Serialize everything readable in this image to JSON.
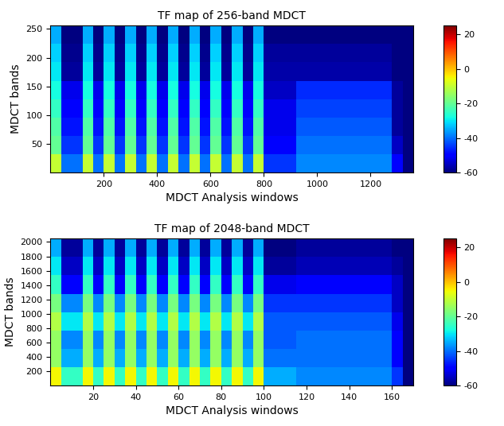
{
  "chart_data": [
    {
      "type": "heatmap",
      "title": "TF map of 256-band MDCT",
      "x_label": "MDCT Analysis windows",
      "y_label": "MDCT bands",
      "xlim": [
        0,
        1360
      ],
      "ylim": [
        0,
        256
      ],
      "xticks": [
        200,
        400,
        600,
        800,
        1000,
        1200
      ],
      "yticks": [
        50,
        100,
        150,
        200,
        250
      ],
      "color_range": [
        -60,
        25
      ],
      "color_ticks": [
        -60,
        -40,
        -20,
        0,
        20
      ],
      "cells": [
        [
          -10,
          -40,
          -40,
          -10,
          -40,
          -10,
          -40,
          -10,
          -40,
          -10,
          -40,
          -10,
          -40,
          -10,
          -40,
          -10,
          -40,
          -10,
          -40,
          -10,
          -45,
          -45,
          -45,
          -38,
          -38,
          -38,
          -38,
          -38,
          -38,
          -38,
          -38,
          -38,
          -50,
          -60
        ],
        [
          -20,
          -45,
          -45,
          -20,
          -45,
          -20,
          -45,
          -20,
          -45,
          -20,
          -45,
          -20,
          -45,
          -20,
          -45,
          -20,
          -45,
          -20,
          -45,
          -20,
          -50,
          -50,
          -50,
          -40,
          -40,
          -40,
          -40,
          -40,
          -40,
          -40,
          -40,
          -40,
          -55,
          -60
        ],
        [
          -22,
          -48,
          -48,
          -22,
          -48,
          -22,
          -48,
          -22,
          -48,
          -22,
          -48,
          -22,
          -48,
          -22,
          -48,
          -22,
          -48,
          -22,
          -48,
          -22,
          -52,
          -52,
          -52,
          -42,
          -42,
          -42,
          -42,
          -42,
          -42,
          -42,
          -42,
          -42,
          -58,
          -60
        ],
        [
          -25,
          -50,
          -50,
          -25,
          -50,
          -25,
          -50,
          -25,
          -50,
          -25,
          -50,
          -25,
          -50,
          -25,
          -50,
          -25,
          -50,
          -25,
          -50,
          -25,
          -52,
          -52,
          -52,
          -44,
          -44,
          -44,
          -44,
          -44,
          -44,
          -44,
          -44,
          -44,
          -58,
          -60
        ],
        [
          -28,
          -52,
          -52,
          -28,
          -52,
          -28,
          -52,
          -28,
          -52,
          -28,
          -52,
          -28,
          -52,
          -28,
          -52,
          -28,
          -52,
          -28,
          -52,
          -28,
          -55,
          -55,
          -55,
          -46,
          -46,
          -46,
          -46,
          -46,
          -46,
          -46,
          -46,
          -46,
          -58,
          -60
        ],
        [
          -30,
          -58,
          -58,
          -30,
          -58,
          -30,
          -58,
          -30,
          -58,
          -30,
          -58,
          -30,
          -58,
          -30,
          -58,
          -30,
          -58,
          -30,
          -58,
          -30,
          -57,
          -57,
          -57,
          -57,
          -57,
          -57,
          -57,
          -57,
          -57,
          -57,
          -57,
          -57,
          -60,
          -60
        ],
        [
          -32,
          -59,
          -59,
          -32,
          -59,
          -32,
          -59,
          -32,
          -59,
          -32,
          -59,
          -32,
          -59,
          -32,
          -59,
          -32,
          -59,
          -32,
          -59,
          -32,
          -58,
          -58,
          -58,
          -58,
          -58,
          -58,
          -58,
          -58,
          -58,
          -58,
          -58,
          -58,
          -60,
          -60
        ],
        [
          -35,
          -60,
          -60,
          -35,
          -60,
          -35,
          -60,
          -35,
          -60,
          -35,
          -60,
          -35,
          -60,
          -35,
          -60,
          -35,
          -60,
          -35,
          -60,
          -35,
          -60,
          -60,
          -60,
          -60,
          -60,
          -60,
          -60,
          -60,
          -60,
          -60,
          -60,
          -60,
          -60,
          -60
        ]
      ]
    },
    {
      "type": "heatmap",
      "title": "TF map of 2048-band MDCT",
      "x_label": "MDCT Analysis windows",
      "y_label": "MDCT bands",
      "xlim": [
        0,
        170
      ],
      "ylim": [
        0,
        2048
      ],
      "xticks": [
        20,
        40,
        60,
        80,
        100,
        120,
        140,
        160
      ],
      "yticks": [
        200,
        400,
        600,
        800,
        1000,
        1200,
        1400,
        1600,
        1800,
        2000
      ],
      "color_range": [
        -60,
        25
      ],
      "color_ticks": [
        -60,
        -40,
        -20,
        0,
        20
      ],
      "cells": [
        [
          -5,
          -25,
          -25,
          -5,
          -25,
          -5,
          -25,
          -5,
          -25,
          -5,
          -25,
          -5,
          -25,
          -5,
          -25,
          -5,
          -25,
          -5,
          -25,
          -5,
          -35,
          -35,
          -35,
          -38,
          -38,
          -38,
          -38,
          -38,
          -38,
          -38,
          -38,
          -38,
          -45,
          -60
        ],
        [
          -15,
          -35,
          -35,
          -15,
          -35,
          -15,
          -35,
          -15,
          -35,
          -15,
          -35,
          -15,
          -35,
          -15,
          -35,
          -15,
          -35,
          -15,
          -35,
          -15,
          -40,
          -40,
          -40,
          -40,
          -40,
          -40,
          -40,
          -40,
          -40,
          -40,
          -40,
          -40,
          -50,
          -60
        ],
        [
          -15,
          -38,
          -38,
          -15,
          -38,
          -15,
          -38,
          -15,
          -38,
          -15,
          -38,
          -15,
          -38,
          -15,
          -38,
          -15,
          -38,
          -15,
          -38,
          -15,
          -42,
          -42,
          -42,
          -40,
          -40,
          -40,
          -40,
          -40,
          -40,
          -40,
          -40,
          -40,
          -50,
          -60
        ],
        [
          -12,
          -30,
          -30,
          -12,
          -30,
          -12,
          -30,
          -12,
          -30,
          -12,
          -30,
          -12,
          -30,
          -12,
          -30,
          -12,
          -30,
          -12,
          -30,
          -12,
          -42,
          -42,
          -42,
          -42,
          -42,
          -42,
          -42,
          -42,
          -42,
          -42,
          -42,
          -42,
          -52,
          -60
        ],
        [
          -18,
          -38,
          -38,
          -18,
          -38,
          -18,
          -38,
          -18,
          -38,
          -18,
          -38,
          -18,
          -38,
          -18,
          -38,
          -18,
          -38,
          -18,
          -38,
          -18,
          -45,
          -45,
          -45,
          -45,
          -45,
          -45,
          -45,
          -45,
          -45,
          -45,
          -45,
          -45,
          -55,
          -60
        ],
        [
          -25,
          -50,
          -50,
          -25,
          -50,
          -25,
          -50,
          -25,
          -50,
          -25,
          -50,
          -25,
          -50,
          -25,
          -50,
          -25,
          -50,
          -25,
          -50,
          -25,
          -52,
          -52,
          -52,
          -50,
          -50,
          -50,
          -50,
          -50,
          -50,
          -50,
          -50,
          -50,
          -55,
          -60
        ],
        [
          -30,
          -55,
          -55,
          -30,
          -55,
          -30,
          -55,
          -30,
          -55,
          -30,
          -55,
          -30,
          -55,
          -30,
          -55,
          -30,
          -55,
          -30,
          -55,
          -30,
          -58,
          -58,
          -58,
          -56,
          -56,
          -56,
          -56,
          -56,
          -56,
          -56,
          -56,
          -56,
          -58,
          -60
        ],
        [
          -35,
          -58,
          -58,
          -35,
          -58,
          -35,
          -58,
          -35,
          -58,
          -35,
          -58,
          -35,
          -58,
          -35,
          -58,
          -35,
          -58,
          -35,
          -58,
          -35,
          -60,
          -60,
          -60,
          -58,
          -58,
          -58,
          -58,
          -58,
          -58,
          -58,
          -58,
          -58,
          -60,
          -60
        ]
      ]
    }
  ]
}
